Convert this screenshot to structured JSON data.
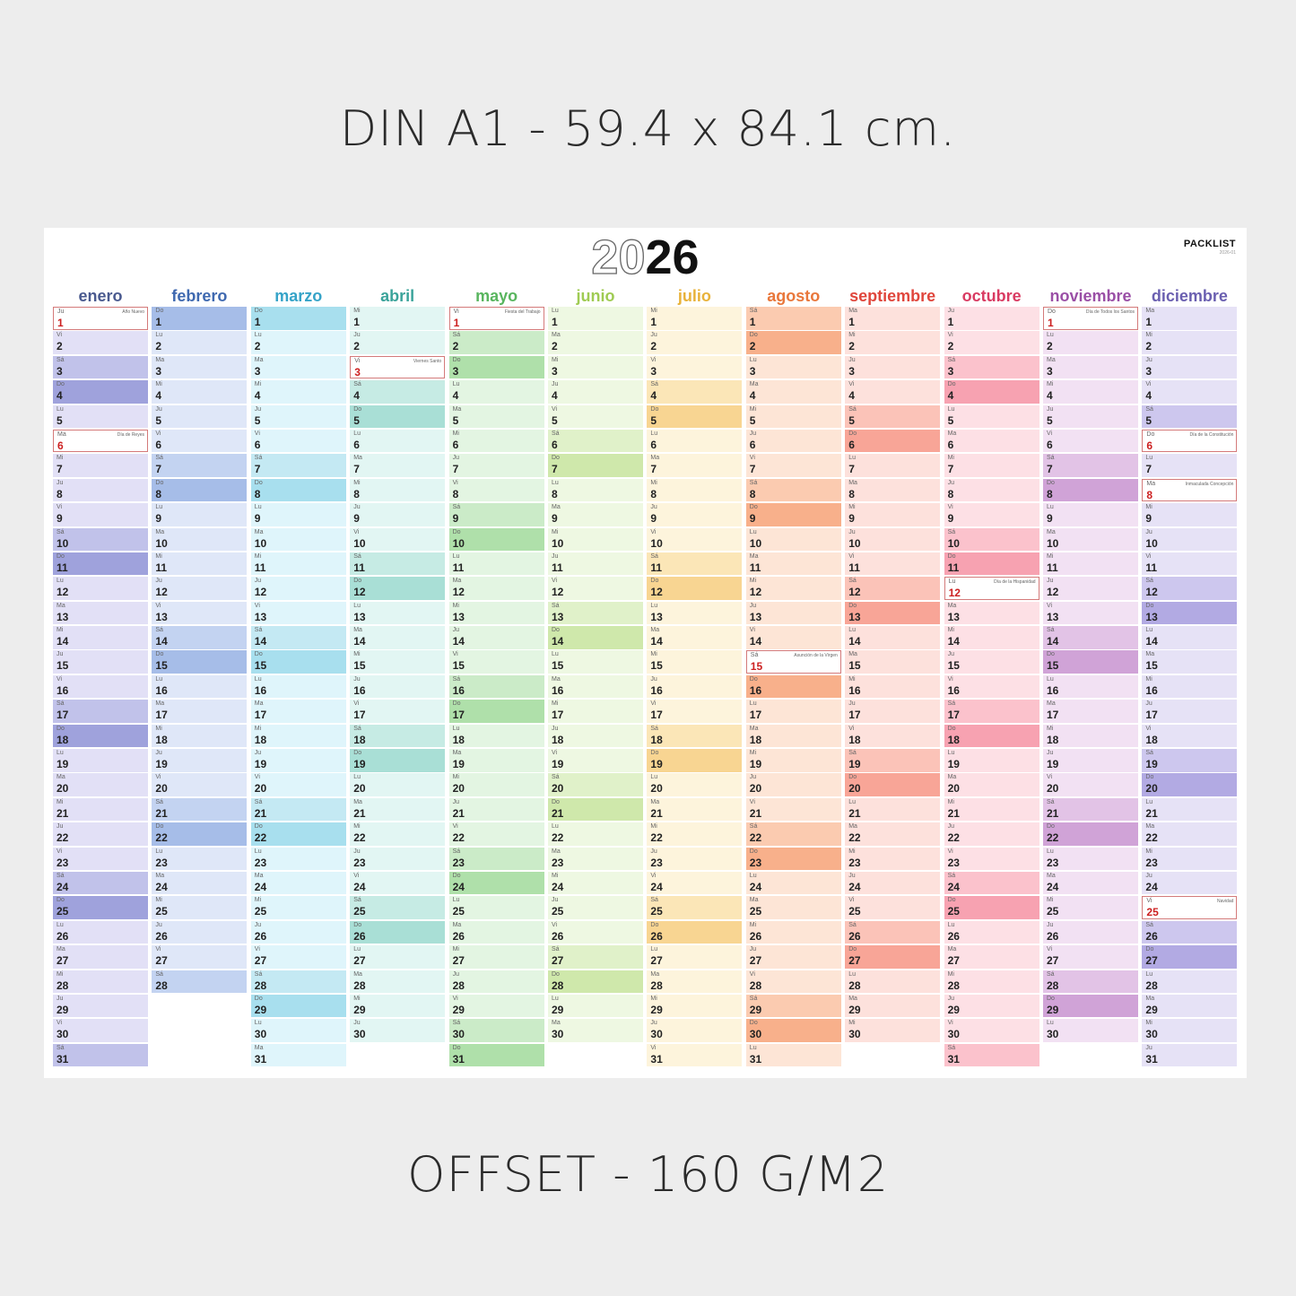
{
  "header_text": "DIN A1 - 59.4 x 84.1 cm.",
  "footer_text": "OFFSET - 160 G/M2",
  "calendar": {
    "year_prefix": "20",
    "year_suffix": "26",
    "brand": "PACKLIST",
    "brand_code": "2026-01",
    "day_abbr": [
      "Lu",
      "Ma",
      "Mi",
      "Ju",
      "Vi",
      "Sá",
      "Do"
    ],
    "months": [
      {
        "name": "enero",
        "days": 31,
        "start": 3,
        "title_color": "#4a5a8f",
        "weekday_color": "#e2e0f6",
        "sat_color": "#c1c2ea",
        "sun_color": "#9fa2dc",
        "holidays": {
          "1": "Año Nuevo",
          "6": "Día de Reyes"
        }
      },
      {
        "name": "febrero",
        "days": 28,
        "start": 6,
        "title_color": "#3f69b0",
        "weekday_color": "#dfe7f8",
        "sat_color": "#c3d3f1",
        "sun_color": "#a6bde8",
        "holidays": {}
      },
      {
        "name": "marzo",
        "days": 31,
        "start": 6,
        "title_color": "#35a3c8",
        "weekday_color": "#dff5fb",
        "sat_color": "#c4e9f3",
        "sun_color": "#a8dfee",
        "holidays": {}
      },
      {
        "name": "abril",
        "days": 30,
        "start": 2,
        "title_color": "#3aa39a",
        "weekday_color": "#e2f6f3",
        "sat_color": "#c6ebe4",
        "sun_color": "#a9dfd6",
        "holidays": {
          "3": "Viernes Santo"
        }
      },
      {
        "name": "mayo",
        "days": 31,
        "start": 4,
        "title_color": "#58b55e",
        "weekday_color": "#e3f5e2",
        "sat_color": "#cbebc8",
        "sun_color": "#afe0aa",
        "holidays": {
          "1": "Fiesta del Trabajo"
        }
      },
      {
        "name": "junio",
        "days": 30,
        "start": 0,
        "title_color": "#9fcb53",
        "weekday_color": "#eef8e2",
        "sat_color": "#e0f1c9",
        "sun_color": "#cfe8ab",
        "holidays": {}
      },
      {
        "name": "julio",
        "days": 31,
        "start": 2,
        "title_color": "#e8b23a",
        "weekday_color": "#fdf4dc",
        "sat_color": "#fbe6b7",
        "sun_color": "#f8d592",
        "holidays": {}
      },
      {
        "name": "agosto",
        "days": 31,
        "start": 5,
        "title_color": "#e9773b",
        "weekday_color": "#fde5d6",
        "sat_color": "#fbcbb0",
        "sun_color": "#f8b08b",
        "holidays": {
          "15": "Asunción de la Virgen"
        }
      },
      {
        "name": "septiembre",
        "days": 30,
        "start": 1,
        "title_color": "#e0463c",
        "weekday_color": "#fde1dc",
        "sat_color": "#fbc3b8",
        "sun_color": "#f8a597",
        "holidays": {}
      },
      {
        "name": "octubre",
        "days": 31,
        "start": 3,
        "title_color": "#d93b62",
        "weekday_color": "#fde0e5",
        "sat_color": "#fbc2cc",
        "sun_color": "#f7a2b1",
        "holidays": {
          "12": "Día de la Hispanidad"
        }
      },
      {
        "name": "noviembre",
        "days": 30,
        "start": 6,
        "title_color": "#9a4fa6",
        "weekday_color": "#f2e1f3",
        "sat_color": "#e2c3e6",
        "sun_color": "#d0a3d7",
        "holidays": {
          "1": "Día de Todos los Santos"
        }
      },
      {
        "name": "diciembre",
        "days": 31,
        "start": 1,
        "title_color": "#6a5fb0",
        "weekday_color": "#e6e2f6",
        "sat_color": "#cdc7ee",
        "sun_color": "#b2aae3",
        "holidays": {
          "6": "Día de la Constitución",
          "8": "Inmaculada Concepción",
          "25": "Navidad"
        }
      }
    ]
  }
}
